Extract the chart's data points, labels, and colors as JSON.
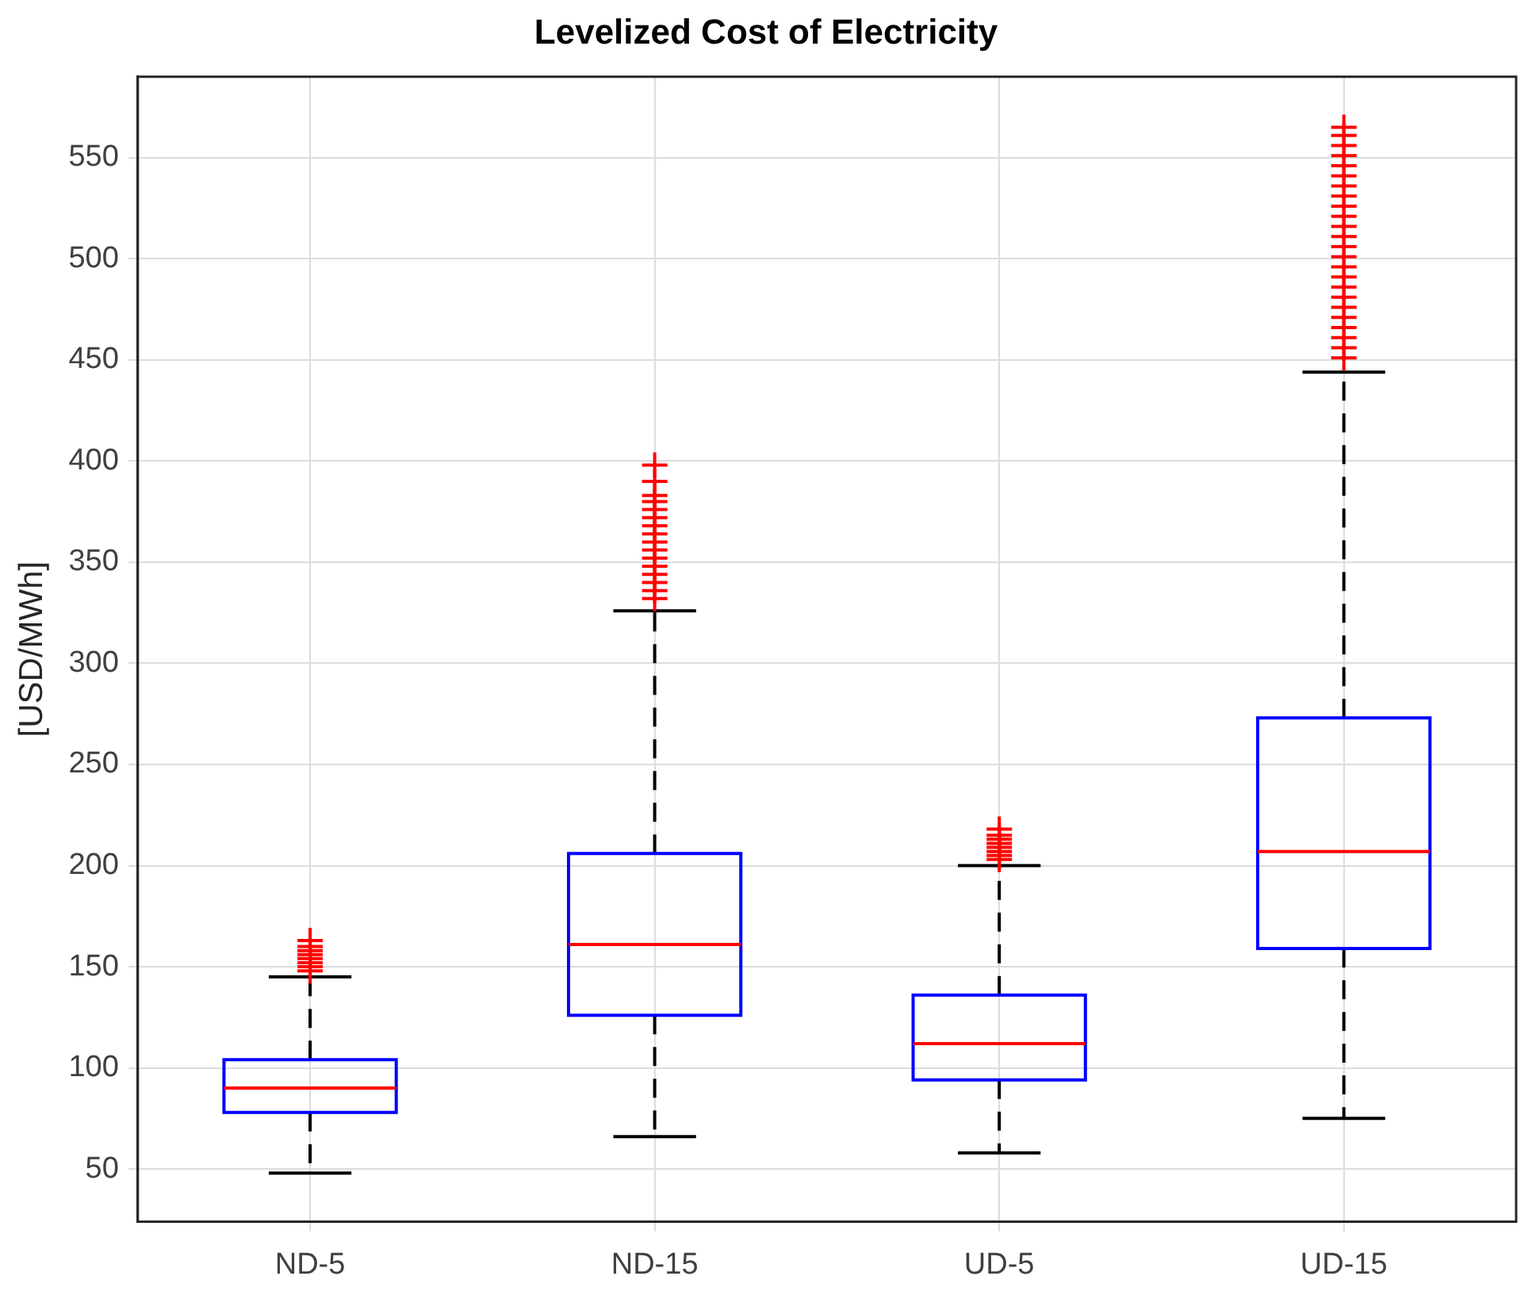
{
  "chart_data": {
    "type": "box",
    "title": "Levelized Cost of Electricity",
    "ylabel": "[USD/MWh]",
    "categories": [
      "ND-5",
      "ND-15",
      "UD-5",
      "UD-15"
    ],
    "boxes": [
      {
        "low": 48,
        "q1": 78,
        "median": 90,
        "q3": 104,
        "high": 145,
        "outliers": [
          148,
          150,
          152,
          154,
          156,
          158,
          160,
          163
        ]
      },
      {
        "low": 66,
        "q1": 126,
        "median": 161,
        "q3": 206,
        "high": 326,
        "outliers": [
          332,
          336,
          340,
          344,
          348,
          352,
          356,
          360,
          364,
          368,
          372,
          376,
          380,
          383,
          390,
          398
        ]
      },
      {
        "low": 58,
        "q1": 94,
        "median": 112,
        "q3": 136,
        "high": 200,
        "outliers": [
          203,
          205,
          207,
          209,
          211,
          213,
          215,
          218
        ]
      },
      {
        "low": 75,
        "q1": 159,
        "median": 207,
        "q3": 273,
        "high": 444,
        "outliers": [
          451,
          456,
          461,
          466,
          471,
          476,
          481,
          486,
          491,
          496,
          501,
          506,
          511,
          516,
          521,
          526,
          531,
          536,
          541,
          546,
          551,
          556,
          561,
          565
        ]
      }
    ],
    "color": "#0000ff",
    "ylim": [
      24,
      590
    ],
    "yticks": [
      50,
      100,
      150,
      200,
      250,
      300,
      350,
      400,
      450,
      500,
      550
    ],
    "grid": true,
    "marker": "cross",
    "line_style": "dashed"
  }
}
